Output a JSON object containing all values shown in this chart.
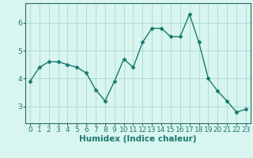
{
  "x": [
    0,
    1,
    2,
    3,
    4,
    5,
    6,
    7,
    8,
    9,
    10,
    11,
    12,
    13,
    14,
    15,
    16,
    17,
    18,
    19,
    20,
    21,
    22,
    23
  ],
  "y": [
    3.9,
    4.4,
    4.6,
    4.6,
    4.5,
    4.4,
    4.2,
    3.6,
    3.2,
    3.9,
    4.7,
    4.4,
    5.3,
    5.8,
    5.8,
    5.5,
    5.5,
    6.3,
    5.3,
    4.0,
    3.55,
    3.2,
    2.8,
    2.9
  ],
  "line_color": "#1a7a6e",
  "marker": "D",
  "marker_size": 2.5,
  "line_width": 1.0,
  "bg_color": "#d8f5f0",
  "grid_color": "#b0ddd8",
  "xlabel": "Humidex (Indice chaleur)",
  "xlabel_fontsize": 7.5,
  "tick_fontsize": 6.5,
  "yticks": [
    3,
    4,
    5,
    6
  ],
  "ylim": [
    2.4,
    6.7
  ],
  "xlim": [
    -0.5,
    23.5
  ],
  "spine_color": "#2a6a60"
}
